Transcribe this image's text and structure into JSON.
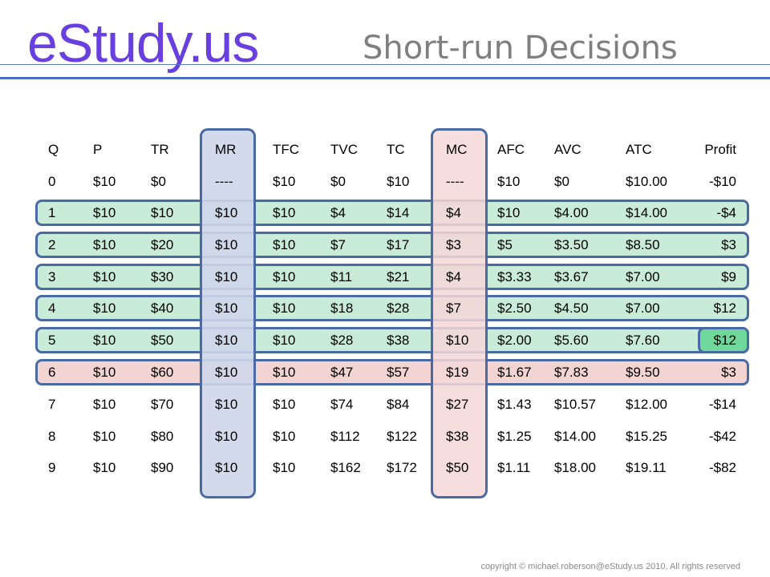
{
  "header": {
    "logo": "eStudy.us",
    "title": "Short-run Decisions"
  },
  "table": {
    "columns": [
      "Q",
      "P",
      "TR",
      "MR",
      "TFC",
      "TVC",
      "TC",
      "MC",
      "AFC",
      "AVC",
      "ATC",
      "Profit"
    ],
    "rows": [
      [
        "0",
        "$10",
        "$0",
        "----",
        "$10",
        "$0",
        "$10",
        "----",
        "$10",
        "$0",
        "$10.00",
        "-$10"
      ],
      [
        "1",
        "$10",
        "$10",
        "$10",
        "$10",
        "$4",
        "$14",
        "$4",
        "$10",
        "$4.00",
        "$14.00",
        "-$4"
      ],
      [
        "2",
        "$10",
        "$20",
        "$10",
        "$10",
        "$7",
        "$17",
        "$3",
        "$5",
        "$3.50",
        "$8.50",
        "$3"
      ],
      [
        "3",
        "$10",
        "$30",
        "$10",
        "$10",
        "$11",
        "$21",
        "$4",
        "$3.33",
        "$3.67",
        "$7.00",
        "$9"
      ],
      [
        "4",
        "$10",
        "$40",
        "$10",
        "$10",
        "$18",
        "$28",
        "$7",
        "$2.50",
        "$4.50",
        "$7.00",
        "$12"
      ],
      [
        "5",
        "$10",
        "$50",
        "$10",
        "$10",
        "$28",
        "$38",
        "$10",
        "$2.00",
        "$5.60",
        "$7.60",
        "$12"
      ],
      [
        "6",
        "$10",
        "$60",
        "$10",
        "$10",
        "$47",
        "$57",
        "$19",
        "$1.67",
        "$7.83",
        "$9.50",
        "$3"
      ],
      [
        "7",
        "$10",
        "$70",
        "$10",
        "$10",
        "$74",
        "$84",
        "$27",
        "$1.43",
        "$10.57",
        "$12.00",
        "-$14"
      ],
      [
        "8",
        "$10",
        "$80",
        "$10",
        "$10",
        "$112",
        "$122",
        "$38",
        "$1.25",
        "$14.00",
        "$15.25",
        "-$42"
      ],
      [
        "9",
        "$10",
        "$90",
        "$10",
        "$10",
        "$162",
        "$172",
        "$50",
        "$1.11",
        "$18.00",
        "$19.11",
        "-$82"
      ]
    ],
    "highlighted_rows_green": [
      "1",
      "2",
      "3",
      "4",
      "5"
    ],
    "highlighted_row_red": "6",
    "highlighted_columns": [
      "MR",
      "MC"
    ],
    "highlighted_cell": {
      "row": "5",
      "column": "Profit"
    }
  },
  "colors": {
    "logo": "#6a3fe0",
    "title": "#7f7f7f",
    "rule": "#4b6fc4",
    "band_border": "#4a6aa5",
    "green_band": "#c9ecd9",
    "red_band": "#f2d4d2",
    "mr_column": "#ced6e9",
    "mc_column": "#f5d8d8",
    "profit_highlight": "#6fd99b"
  },
  "footer": {
    "copyright": "copyright © michael.roberson@eStudy.us 2010, All rights reserved"
  }
}
